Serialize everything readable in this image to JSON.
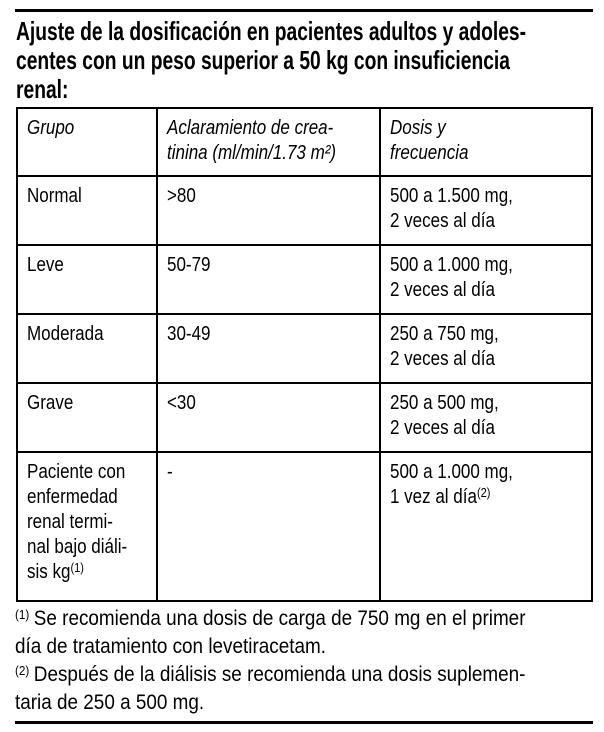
{
  "document": {
    "title": "Ajuste de la dosificación en pacientes adultos y adoles-\ncentes con un peso superior a 50 kg con insuficiencia\nrenal:"
  },
  "table": {
    "headers": [
      {
        "text": "Grupo",
        "sup": ""
      },
      {
        "text": "Aclaramiento de crea-\ntinina (ml/min/1.73 m²)",
        "sup": ""
      },
      {
        "text": "Dosis y\nfrecuencia",
        "sup": ""
      }
    ],
    "rows": [
      {
        "cells": [
          {
            "text": "Normal",
            "sup": ""
          },
          {
            "text": ">80",
            "sup": ""
          },
          {
            "text": "500 a 1.500 mg,\n2 veces al día",
            "sup": ""
          }
        ]
      },
      {
        "cells": [
          {
            "text": "Leve",
            "sup": ""
          },
          {
            "text": "50-79",
            "sup": ""
          },
          {
            "text": "500 a 1.000 mg,\n2 veces al día",
            "sup": ""
          }
        ]
      },
      {
        "cells": [
          {
            "text": "Moderada",
            "sup": ""
          },
          {
            "text": "30-49",
            "sup": ""
          },
          {
            "text": "250 a 750 mg,\n2 veces al día",
            "sup": ""
          }
        ]
      },
      {
        "cells": [
          {
            "text": "Grave",
            "sup": ""
          },
          {
            "text": "<30",
            "sup": ""
          },
          {
            "text": "250 a 500 mg,\n2 veces al día",
            "sup": ""
          }
        ]
      },
      {
        "cells": [
          {
            "text": "Paciente con\nenfermedad\nrenal termi-\nnal bajo diáli-\nsis kg",
            "sup": "(1)"
          },
          {
            "text": "-",
            "sup": ""
          },
          {
            "text": "500 a 1.000 mg,\n1 vez al día",
            "sup": "(2)"
          }
        ]
      }
    ]
  },
  "footnotes": [
    {
      "marker": "(1)",
      "text": "Se recomienda una dosis de carga de 750 mg en el primer\ndía de tratamiento con levetiracetam."
    },
    {
      "marker": "(2)",
      "text": "Después de la diálisis se recomienda una dosis suplemen-\ntaria de 250 a 500 mg."
    }
  ],
  "colors": {
    "ink": "#000000",
    "paper": "#ffffff"
  }
}
